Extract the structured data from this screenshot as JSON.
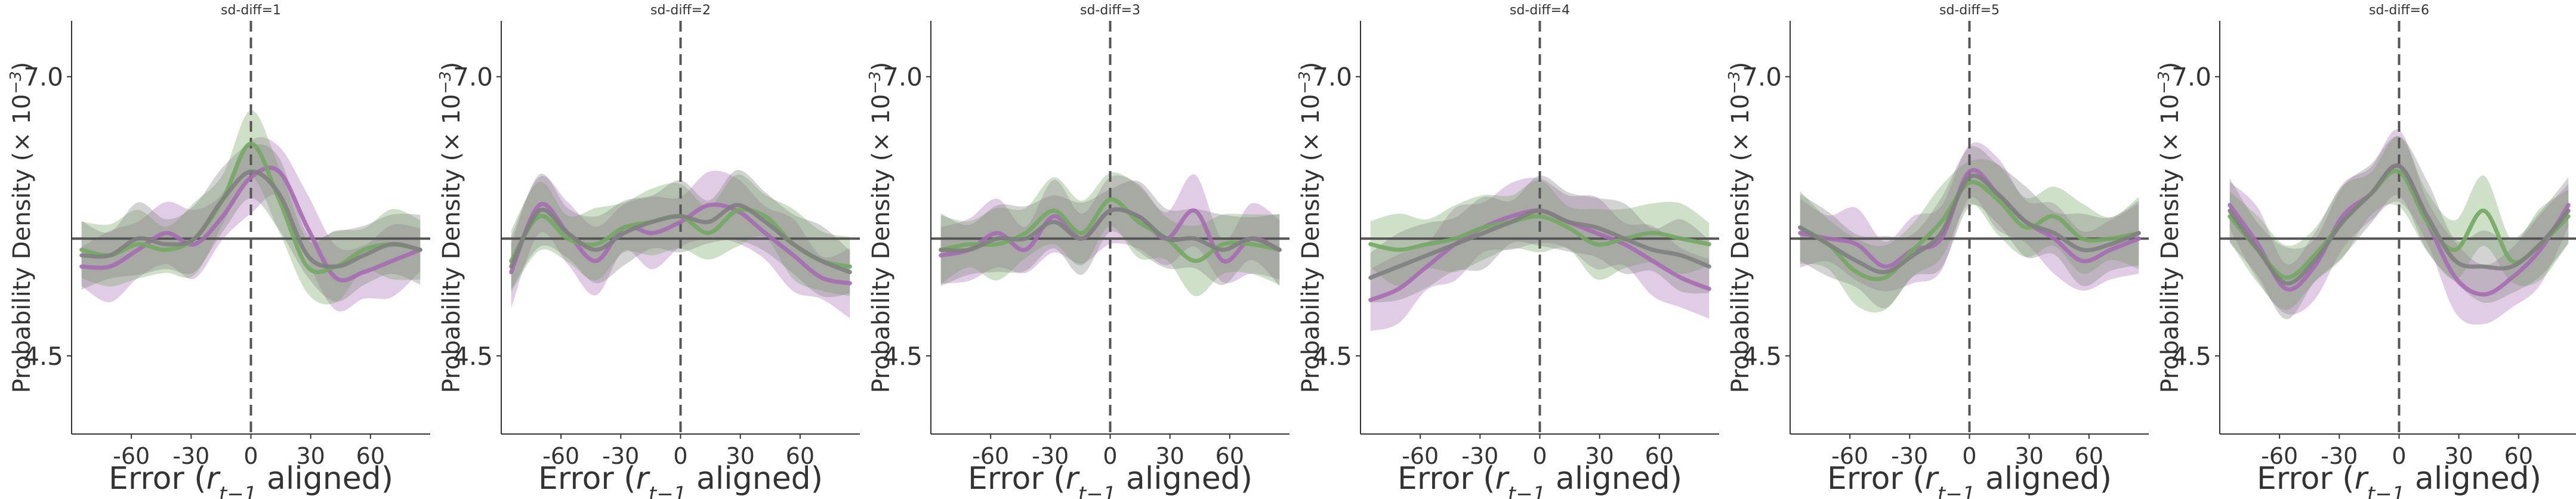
{
  "chart_data": [
    {
      "type": "line",
      "title": "sd-diff=1",
      "xlabel": "Error ($r_{t-1}$ aligned)",
      "ylabel": "Probability Density ($\\times\\,10^{-3}$)",
      "xlim": [
        -90,
        90
      ],
      "ylim": [
        3.8,
        7.5
      ],
      "xticks": [
        -60,
        -30,
        0,
        30,
        60
      ],
      "xtick_labels": [
        "-60",
        "-30",
        "0",
        "30",
        "60"
      ],
      "yticks": [
        4.5,
        7.0
      ],
      "ytick_labels": [
        "4.5",
        "7.0"
      ],
      "reference_hline": 5.55,
      "reference_vline": 0,
      "x": [
        -90,
        -75,
        -60,
        -45,
        -30,
        -15,
        0,
        15,
        30,
        45,
        60,
        75,
        90
      ],
      "series": [
        {
          "color": "#a66cb2",
          "values": [
            5.3,
            5.3,
            5.45,
            5.6,
            5.5,
            5.75,
            6.1,
            6.15,
            5.65,
            5.2,
            5.25,
            5.35,
            5.45
          ]
        },
        {
          "color": "#73a862",
          "values": [
            5.45,
            5.4,
            5.5,
            5.45,
            5.55,
            5.9,
            6.4,
            5.9,
            5.3,
            5.3,
            5.45,
            5.5,
            5.45
          ]
        },
        {
          "color": "#808080",
          "values": [
            5.4,
            5.4,
            5.55,
            5.5,
            5.55,
            5.9,
            6.15,
            5.95,
            5.4,
            5.3,
            5.4,
            5.5,
            5.45
          ]
        }
      ]
    },
    {
      "type": "line",
      "title": "sd-diff=2",
      "xlabel": "Error ($r_{t-1}$ aligned)",
      "ylabel": "Probability Density ($\\times\\,10^{-3}$)",
      "xlim": [
        -90,
        90
      ],
      "ylim": [
        3.8,
        7.5
      ],
      "xticks": [
        -60,
        -30,
        0,
        30,
        60
      ],
      "xtick_labels": [
        "-60",
        "-30",
        "0",
        "30",
        "60"
      ],
      "yticks": [
        4.5,
        7.0
      ],
      "ytick_labels": [
        "4.5",
        "7.0"
      ],
      "reference_hline": 5.55,
      "reference_vline": 0,
      "x": [
        -90,
        -75,
        -60,
        -45,
        -30,
        -15,
        0,
        15,
        30,
        45,
        60,
        75,
        90
      ],
      "series": [
        {
          "color": "#a66cb2",
          "values": [
            5.25,
            5.85,
            5.6,
            5.35,
            5.65,
            5.6,
            5.7,
            5.85,
            5.8,
            5.6,
            5.4,
            5.2,
            5.15
          ]
        },
        {
          "color": "#73a862",
          "values": [
            5.35,
            5.75,
            5.55,
            5.5,
            5.65,
            5.7,
            5.75,
            5.6,
            5.8,
            5.75,
            5.5,
            5.35,
            5.3
          ]
        },
        {
          "color": "#808080",
          "values": [
            5.3,
            5.8,
            5.6,
            5.45,
            5.6,
            5.7,
            5.75,
            5.7,
            5.85,
            5.7,
            5.5,
            5.35,
            5.25
          ]
        }
      ]
    },
    {
      "type": "line",
      "title": "sd-diff=3",
      "xlabel": "Error ($r_{t-1}$ aligned)",
      "ylabel": "Probability Density ($\\times\\,10^{-3}$)",
      "xlim": [
        -90,
        90
      ],
      "ylim": [
        3.8,
        7.5
      ],
      "xticks": [
        -60,
        -30,
        0,
        30,
        60
      ],
      "xtick_labels": [
        "-60",
        "-30",
        "0",
        "30",
        "60"
      ],
      "yticks": [
        4.5,
        7.0
      ],
      "ytick_labels": [
        "4.5",
        "7.0"
      ],
      "reference_hline": 5.55,
      "reference_vline": 0,
      "x": [
        -90,
        -75,
        -60,
        -45,
        -30,
        -15,
        0,
        15,
        30,
        45,
        60,
        75,
        90
      ],
      "series": [
        {
          "color": "#a66cb2",
          "values": [
            5.4,
            5.45,
            5.6,
            5.45,
            5.75,
            5.55,
            5.8,
            5.75,
            5.55,
            5.8,
            5.35,
            5.55,
            5.45
          ]
        },
        {
          "color": "#73a862",
          "values": [
            5.45,
            5.5,
            5.5,
            5.6,
            5.8,
            5.6,
            5.9,
            5.7,
            5.55,
            5.35,
            5.5,
            5.5,
            5.45
          ]
        },
        {
          "color": "#808080",
          "values": [
            5.45,
            5.45,
            5.55,
            5.55,
            5.7,
            5.55,
            5.8,
            5.75,
            5.55,
            5.55,
            5.45,
            5.55,
            5.45
          ]
        }
      ]
    },
    {
      "type": "line",
      "title": "sd-diff=4",
      "xlabel": "Error ($r_{t-1}$ aligned)",
      "ylabel": "Probability Density ($\\times\\,10^{-3}$)",
      "xlim": [
        -90,
        90
      ],
      "ylim": [
        3.8,
        7.5
      ],
      "xticks": [
        -60,
        -30,
        0,
        30,
        60
      ],
      "xtick_labels": [
        "-60",
        "-30",
        "0",
        "30",
        "60"
      ],
      "yticks": [
        4.5,
        7.0
      ],
      "ytick_labels": [
        "4.5",
        "7.0"
      ],
      "reference_hline": 5.55,
      "reference_vline": 0,
      "x": [
        -90,
        -75,
        -60,
        -45,
        -30,
        -15,
        0,
        15,
        30,
        45,
        60,
        75,
        90
      ],
      "series": [
        {
          "color": "#a66cb2",
          "values": [
            5.0,
            5.1,
            5.3,
            5.5,
            5.65,
            5.75,
            5.8,
            5.7,
            5.6,
            5.5,
            5.35,
            5.2,
            5.1
          ]
        },
        {
          "color": "#73a862",
          "values": [
            5.5,
            5.45,
            5.5,
            5.55,
            5.65,
            5.7,
            5.75,
            5.65,
            5.5,
            5.55,
            5.6,
            5.55,
            5.5
          ]
        },
        {
          "color": "#808080",
          "values": [
            5.2,
            5.3,
            5.4,
            5.5,
            5.6,
            5.7,
            5.8,
            5.7,
            5.65,
            5.55,
            5.45,
            5.4,
            5.3
          ]
        }
      ]
    },
    {
      "type": "line",
      "title": "sd-diff=5",
      "xlabel": "Error ($r_{t-1}$ aligned)",
      "ylabel": "Probability Density ($\\times\\,10^{-3}$)",
      "xlim": [
        -90,
        90
      ],
      "ylim": [
        3.8,
        7.5
      ],
      "xticks": [
        -60,
        -30,
        0,
        30,
        60
      ],
      "xtick_labels": [
        "-60",
        "-30",
        "0",
        "30",
        "60"
      ],
      "yticks": [
        4.5,
        7.0
      ],
      "ytick_labels": [
        "4.5",
        "7.0"
      ],
      "reference_hline": 5.55,
      "reference_vline": 0,
      "x": [
        -90,
        -75,
        -60,
        -45,
        -30,
        -15,
        0,
        15,
        30,
        45,
        60,
        75,
        90
      ],
      "series": [
        {
          "color": "#a66cb2",
          "values": [
            5.6,
            5.55,
            5.5,
            5.3,
            5.45,
            5.55,
            6.15,
            5.95,
            5.7,
            5.55,
            5.35,
            5.45,
            5.55
          ]
        },
        {
          "color": "#73a862",
          "values": [
            5.65,
            5.5,
            5.25,
            5.2,
            5.45,
            5.7,
            6.05,
            5.9,
            5.65,
            5.75,
            5.55,
            5.55,
            5.6
          ]
        },
        {
          "color": "#808080",
          "values": [
            5.65,
            5.5,
            5.35,
            5.25,
            5.4,
            5.6,
            6.1,
            5.95,
            5.7,
            5.6,
            5.45,
            5.5,
            5.6
          ]
        }
      ]
    },
    {
      "type": "line",
      "title": "sd-diff=6",
      "xlabel": "Error ($r_{t-1}$ aligned)",
      "ylabel": "Probability Density ($\\times\\,10^{-3}$)",
      "xlim": [
        -90,
        90
      ],
      "ylim": [
        3.8,
        7.5
      ],
      "xticks": [
        -60,
        -30,
        0,
        30,
        60
      ],
      "xtick_labels": [
        "-60",
        "-30",
        "0",
        "30",
        "60"
      ],
      "yticks": [
        4.5,
        7.0
      ],
      "ytick_labels": [
        "4.5",
        "7.0"
      ],
      "reference_hline": 5.55,
      "reference_vline": 0,
      "x": [
        -90,
        -75,
        -60,
        -45,
        -30,
        -15,
        0,
        15,
        30,
        45,
        60,
        75,
        90
      ],
      "series": [
        {
          "color": "#a66cb2",
          "values": [
            5.85,
            5.5,
            5.1,
            5.3,
            5.75,
            5.95,
            6.2,
            5.7,
            5.2,
            5.05,
            5.2,
            5.45,
            5.85
          ]
        },
        {
          "color": "#73a862",
          "values": [
            5.75,
            5.45,
            5.2,
            5.4,
            5.7,
            5.95,
            6.15,
            5.7,
            5.45,
            5.8,
            5.35,
            5.5,
            5.75
          ]
        },
        {
          "color": "#808080",
          "values": [
            5.8,
            5.45,
            5.15,
            5.35,
            5.7,
            5.95,
            6.2,
            5.75,
            5.35,
            5.3,
            5.3,
            5.5,
            5.8
          ]
        }
      ]
    }
  ]
}
